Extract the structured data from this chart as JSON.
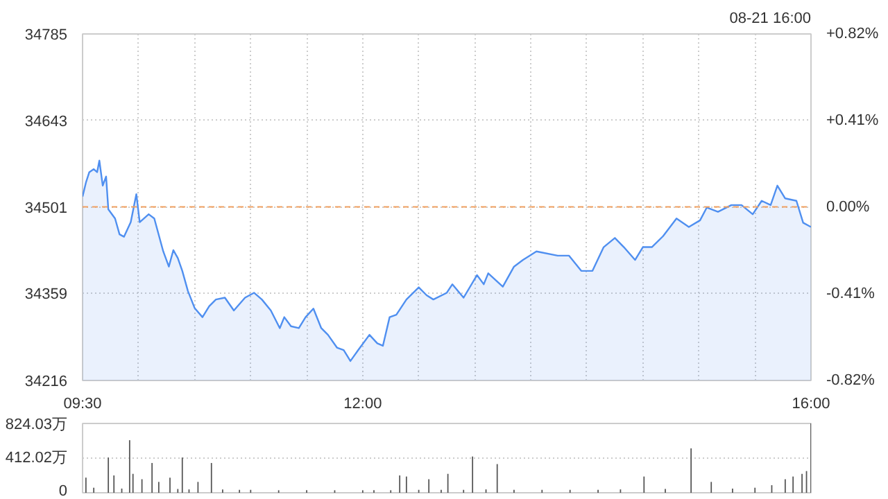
{
  "chart_data": [
    {
      "type": "area",
      "annotations": [
        "08-21 16:00"
      ],
      "xlim": [
        9.5,
        16
      ],
      "xticks": [
        {
          "value": 9.5,
          "label": "09:30"
        },
        {
          "value": 10,
          "label": null
        },
        {
          "value": 10.5,
          "label": null
        },
        {
          "value": 11,
          "label": null
        },
        {
          "value": 11.5,
          "label": null
        },
        {
          "value": 12,
          "label": "12:00"
        },
        {
          "value": 12.5,
          "label": null
        },
        {
          "value": 13,
          "label": null
        },
        {
          "value": 13.5,
          "label": null
        },
        {
          "value": 14,
          "label": null
        },
        {
          "value": 14.5,
          "label": null
        },
        {
          "value": 15,
          "label": null
        },
        {
          "value": 15.5,
          "label": null
        },
        {
          "value": 16,
          "label": "16:00"
        }
      ],
      "ylim": [
        34216,
        34785
      ],
      "yticks": [
        34216,
        34359,
        34501,
        34643,
        34785
      ],
      "y2lim": [
        -0.82,
        0.82
      ],
      "y2ticks": [
        {
          "value": -0.82,
          "label": "-0.82%"
        },
        {
          "value": -0.41,
          "label": "-0.41%"
        },
        {
          "value": 0,
          "label": "0.00%"
        },
        {
          "value": 0.41,
          "label": "+0.41%"
        },
        {
          "value": 0.82,
          "label": "+0.82%"
        }
      ],
      "grid": true,
      "ref_lines": [
        {
          "axis": "y",
          "value": 34501,
          "label": null,
          "color": "#f0a060",
          "line_style": "dashed"
        }
      ],
      "x": [
        9.5,
        9.53,
        9.56,
        9.6,
        9.63,
        9.65,
        9.68,
        9.71,
        9.73,
        9.79,
        9.83,
        9.87,
        9.93,
        9.98,
        10.01,
        10.09,
        10.14,
        10.22,
        10.27,
        10.31,
        10.35,
        10.39,
        10.44,
        10.5,
        10.57,
        10.63,
        10.69,
        10.77,
        10.85,
        10.95,
        11.03,
        11.1,
        11.18,
        11.26,
        11.3,
        11.36,
        11.43,
        11.49,
        11.56,
        11.63,
        11.69,
        11.77,
        11.83,
        11.89,
        11.96,
        12.06,
        12.13,
        12.18,
        12.24,
        12.3,
        12.39,
        12.5,
        12.57,
        12.63,
        12.75,
        12.8,
        12.9,
        13.02,
        13.08,
        13.12,
        13.25,
        13.35,
        13.43,
        13.55,
        13.74,
        13.84,
        13.95,
        14.05,
        14.15,
        14.25,
        14.33,
        14.43,
        14.5,
        14.58,
        14.68,
        14.8,
        14.91,
        15.01,
        15.07,
        15.17,
        15.29,
        15.38,
        15.48,
        15.56,
        15.64,
        15.7,
        15.77,
        15.87,
        15.93,
        16.0
      ],
      "series": [
        {
          "color": "#4f8ff0",
          "values": [
            34518,
            34541,
            34558,
            34563,
            34558,
            34577,
            34536,
            34551,
            34497,
            34482,
            34456,
            34452,
            34476,
            34522,
            34476,
            34489,
            34482,
            34428,
            34403,
            34430,
            34417,
            34396,
            34363,
            34335,
            34320,
            34338,
            34349,
            34352,
            34331,
            34352,
            34360,
            34349,
            34331,
            34302,
            34320,
            34305,
            34302,
            34320,
            34334,
            34302,
            34291,
            34270,
            34266,
            34248,
            34266,
            34291,
            34277,
            34273,
            34320,
            34324,
            34349,
            34369,
            34356,
            34349,
            34360,
            34374,
            34352,
            34389,
            34374,
            34392,
            34370,
            34403,
            34414,
            34428,
            34421,
            34421,
            34396,
            34396,
            34435,
            34450,
            34435,
            34414,
            34435,
            34435,
            34453,
            34482,
            34468,
            34479,
            34500,
            34493,
            34504,
            34504,
            34489,
            34511,
            34504,
            34536,
            34515,
            34511,
            34475,
            34468
          ]
        }
      ]
    },
    {
      "type": "bar",
      "tick_labels": "y",
      "grid": "y",
      "xlim": [
        9.5,
        16
      ],
      "ylim": [
        0,
        824.03
      ],
      "yticks": [
        0,
        {
          "value": 412.02,
          "label": "412.02万"
        },
        {
          "value": 824.03,
          "label": "824.03万"
        }
      ],
      "x": [
        9.53,
        9.6,
        9.73,
        9.78,
        9.85,
        9.92,
        9.95,
        10.03,
        10.12,
        10.18,
        10.28,
        10.35,
        10.39,
        10.45,
        10.53,
        10.65,
        10.75,
        10.9,
        11.0,
        11.25,
        11.5,
        11.75,
        12.0,
        12.1,
        12.25,
        12.33,
        12.39,
        12.5,
        12.59,
        12.7,
        12.76,
        12.9,
        12.98,
        13.1,
        13.2,
        13.35,
        13.6,
        13.85,
        14.1,
        14.3,
        14.51,
        14.7,
        14.93,
        15.11,
        15.3,
        15.5,
        15.65,
        15.77,
        15.84,
        15.92,
        15.96,
        16.0
      ],
      "series": [
        {
          "color": "#555555",
          "values": [
            180,
            60,
            419,
            206,
            50,
            625,
            225,
            161,
            354,
            129,
            180,
            45,
            419,
            40,
            129,
            354,
            40,
            35,
            35,
            30,
            30,
            30,
            30,
            30,
            30,
            206,
            193,
            35,
            161,
            35,
            225,
            35,
            431,
            40,
            341,
            35,
            35,
            35,
            35,
            40,
            193,
            45,
            528,
            129,
            50,
            60,
            90,
            161,
            193,
            225,
            258,
            824.03
          ]
        }
      ]
    }
  ]
}
